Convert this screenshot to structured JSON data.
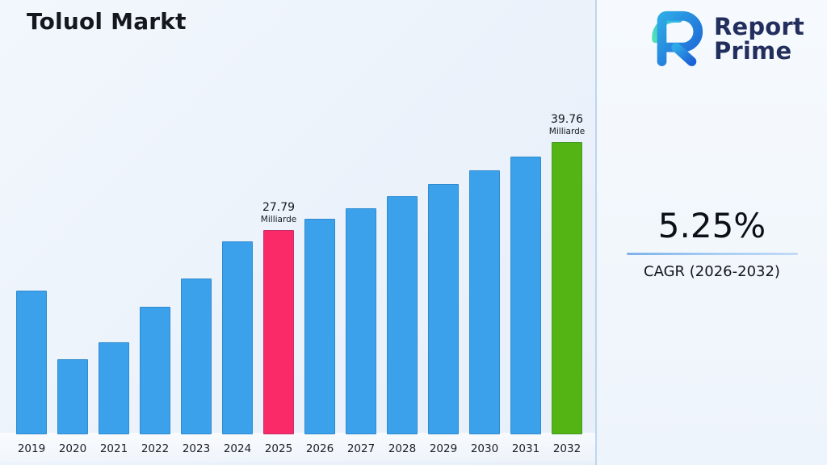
{
  "page": {
    "title": "Toluol Markt"
  },
  "logo": {
    "line1": "Report",
    "line2": "Prime"
  },
  "stats": {
    "value": "5.25%",
    "label": "CAGR (2026-2032)"
  },
  "chart_data": {
    "type": "bar",
    "title": "Toluol Markt",
    "unit": "Milliarde",
    "categories": [
      "2019",
      "2020",
      "2021",
      "2022",
      "2023",
      "2024",
      "2025",
      "2026",
      "2027",
      "2028",
      "2029",
      "2030",
      "2031",
      "2032"
    ],
    "values": [
      19.5,
      10.2,
      12.5,
      17.4,
      21.2,
      26.3,
      27.79,
      29.3,
      30.8,
      32.4,
      34.1,
      35.9,
      37.8,
      39.76
    ],
    "ylim": [
      0,
      42
    ],
    "grid": false,
    "legend": "none",
    "bar_color": "#3BA1EB",
    "highlights": [
      {
        "category": "2025",
        "color": "#FA2A68"
      },
      {
        "category": "2032",
        "color": "#54B413"
      }
    ],
    "annotations": [
      {
        "category": "2025",
        "value": "27.79",
        "unit": "Milliarde"
      },
      {
        "category": "2032",
        "value": "39.76",
        "unit": "Milliarde"
      }
    ]
  }
}
